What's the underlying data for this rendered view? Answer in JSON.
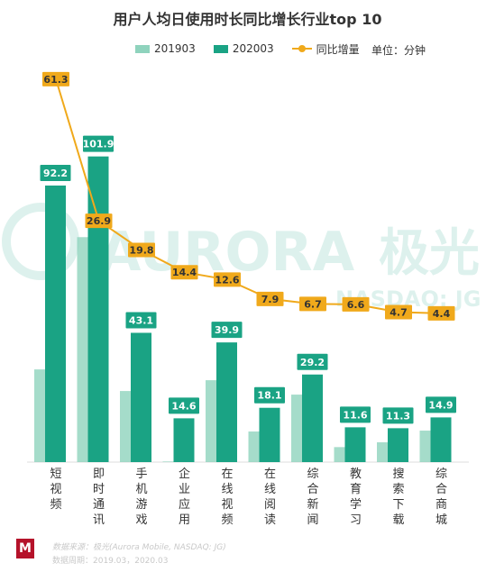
{
  "chart_data": {
    "type": "bar",
    "title": "用户人均日使用时长同比增长行业top 10",
    "unit_label": "单位：分钟",
    "categories": [
      "短视频",
      "即时通讯",
      "手机游戏",
      "企业应用",
      "在线视频",
      "在线阅读",
      "综合新闻",
      "教育学习",
      "搜索下载",
      "综合商城"
    ],
    "series": [
      {
        "name": "201903",
        "kind": "bar",
        "color": "#8fd3bd",
        "values": [
          30.9,
          75.0,
          23.7,
          0.2,
          27.3,
          10.2,
          22.5,
          5.0,
          6.6,
          10.5
        ]
      },
      {
        "name": "202003",
        "kind": "bar",
        "color": "#1aa384",
        "values": [
          92.2,
          101.9,
          43.1,
          14.6,
          39.9,
          18.1,
          29.2,
          11.6,
          11.3,
          14.9
        ]
      },
      {
        "name": "同比增量",
        "kind": "line",
        "color": "#f0a91b",
        "values": [
          61.3,
          26.9,
          19.8,
          14.4,
          12.6,
          7.9,
          6.7,
          6.6,
          4.7,
          4.4
        ]
      }
    ],
    "legend_position": "top",
    "grid": false
  },
  "watermark": {
    "brand": "AURORA",
    "brand_cn": "极光",
    "sub": "NASDAQ: JG"
  },
  "footer": {
    "logo": "M",
    "source": "数据来源：极光(Aurora Mobile, NASDAQ: JG)",
    "date": "数据周期：2019.03，2020.03"
  }
}
